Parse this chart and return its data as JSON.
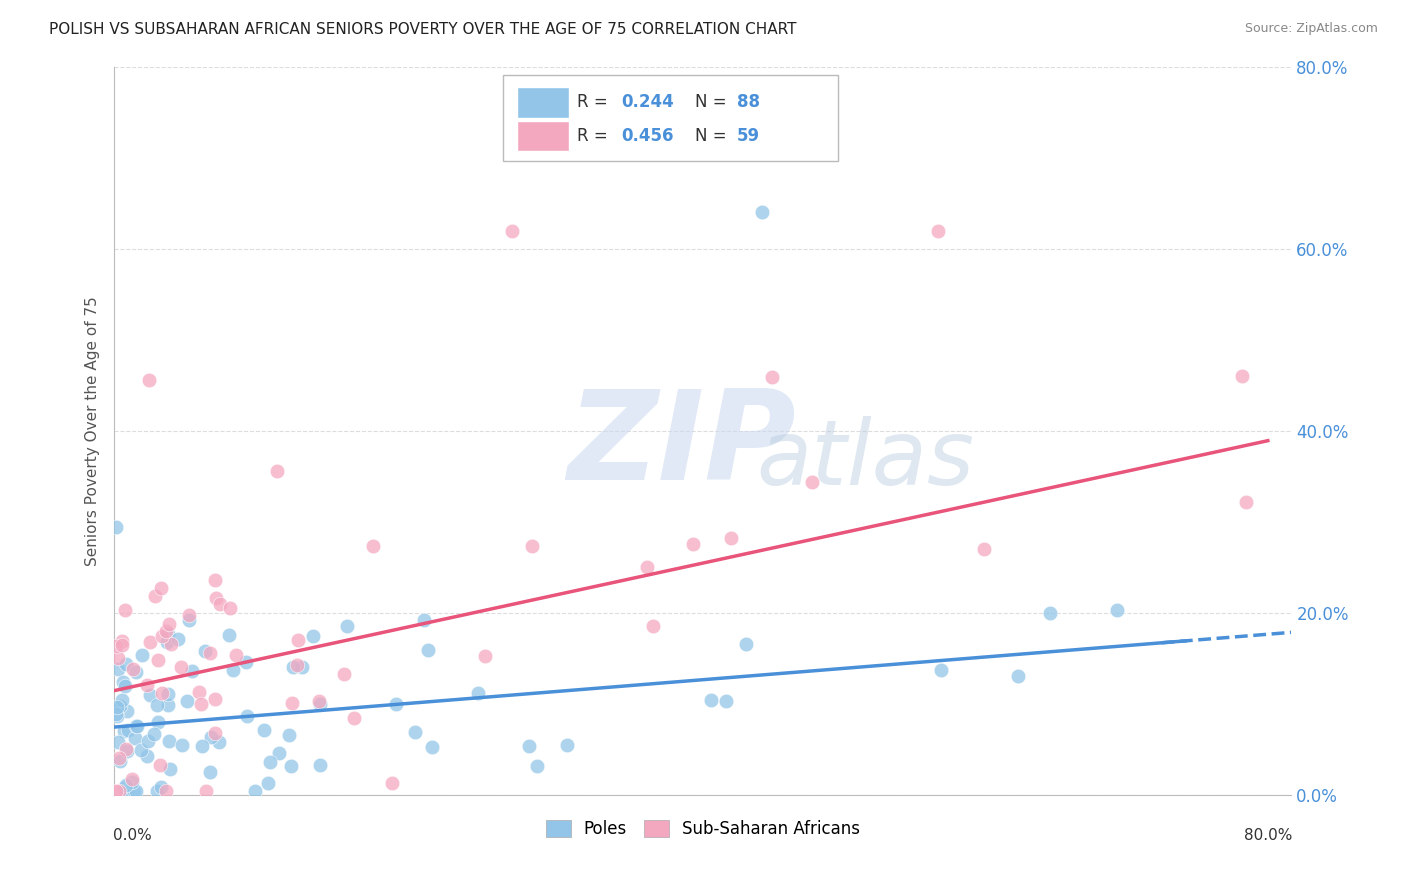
{
  "title": "POLISH VS SUBSAHARAN AFRICAN SENIORS POVERTY OVER THE AGE OF 75 CORRELATION CHART",
  "source": "Source: ZipAtlas.com",
  "ylabel": "Seniors Poverty Over the Age of 75",
  "xlim": [
    0.0,
    0.8
  ],
  "ylim": [
    0.0,
    0.8
  ],
  "ytick_labels": [
    "0.0%",
    "20.0%",
    "40.0%",
    "60.0%",
    "80.0%"
  ],
  "ytick_values": [
    0.0,
    0.2,
    0.4,
    0.6,
    0.8
  ],
  "poles_R": 0.244,
  "poles_N": 88,
  "ssa_R": 0.456,
  "ssa_N": 59,
  "poles_color": "#92C5E8",
  "ssa_color": "#F4A8C0",
  "trend_poles_color": "#4A90D9",
  "trend_ssa_color": "#E8547A",
  "background_color": "#FFFFFF",
  "grid_color": "#DDDDDD",
  "title_fontsize": 11,
  "source_fontsize": 9,
  "label_color": "#4A90D9",
  "watermark_zip_color": "#C8D8EE",
  "watermark_atlas_color": "#B8CCE0"
}
